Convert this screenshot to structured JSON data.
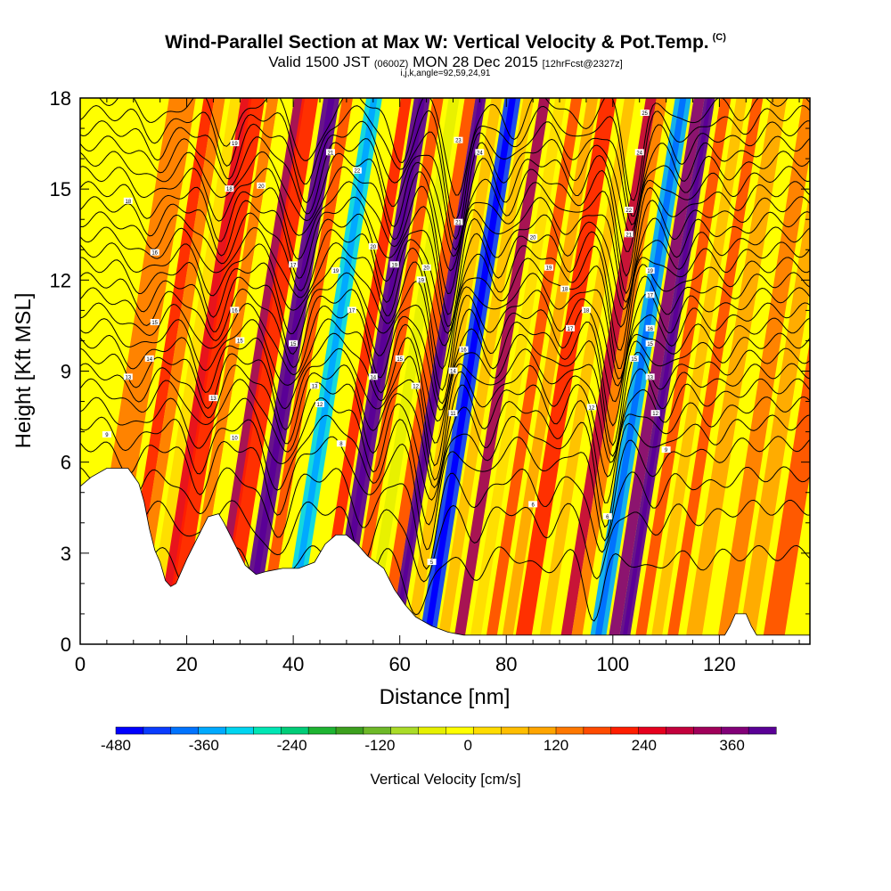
{
  "header": {
    "title": "Wind-Parallel Section at Max W: Vertical Velocity & Pot.Temp.",
    "copyright": "(C)",
    "subtitle_main": "Valid 1500 JST",
    "subtitle_utc": "(0600Z)",
    "subtitle_date": "MON 28 Dec 2015",
    "subtitle_fcst": "[12hrFcst@2327z]",
    "caption": "i,j,k,angle=92,59,24,91"
  },
  "chart_data": {
    "type": "heatmap",
    "xlabel": "Distance [nm]",
    "ylabel": "Height [Kft MSL]",
    "xlim": [
      0,
      137
    ],
    "ylim": [
      0,
      18
    ],
    "x_ticks": [
      0,
      20,
      40,
      60,
      80,
      100,
      120
    ],
    "y_ticks": [
      0,
      3,
      6,
      9,
      12,
      15,
      18
    ],
    "colorbar": {
      "label": "Vertical Velocity [cm/s]",
      "range": [
        -480,
        420
      ],
      "step": 30,
      "tick_labels": [
        "-480",
        "-360",
        "-240",
        "-120",
        "0",
        "120",
        "240",
        "360"
      ],
      "colors": [
        "#0000ff",
        "#0a3cff",
        "#0073ff",
        "#00aaff",
        "#00d5f0",
        "#00e6b4",
        "#00cd78",
        "#1eb432",
        "#3ca01e",
        "#6eb928",
        "#aadc28",
        "#e6f000",
        "#ffff00",
        "#ffdc00",
        "#ffbe00",
        "#ffa500",
        "#ff7800",
        "#ff4b00",
        "#ff1e00",
        "#e6001e",
        "#c3003c",
        "#a0005a",
        "#820078",
        "#5a0096"
      ]
    },
    "terrain_kft": [
      [
        0,
        5.2
      ],
      [
        2,
        5.5
      ],
      [
        5,
        5.8
      ],
      [
        9,
        5.8
      ],
      [
        11,
        5.3
      ],
      [
        12,
        4.7
      ],
      [
        13,
        3.8
      ],
      [
        14,
        3.1
      ],
      [
        15,
        2.7
      ],
      [
        16,
        2.1
      ],
      [
        17,
        1.9
      ],
      [
        18,
        2.0
      ],
      [
        20,
        2.8
      ],
      [
        22,
        3.5
      ],
      [
        24,
        4.2
      ],
      [
        26,
        4.3
      ],
      [
        27,
        4.0
      ],
      [
        29,
        3.3
      ],
      [
        31,
        2.6
      ],
      [
        33,
        2.3
      ],
      [
        35,
        2.4
      ],
      [
        38,
        2.5
      ],
      [
        41,
        2.5
      ],
      [
        44,
        2.7
      ],
      [
        46,
        3.3
      ],
      [
        48,
        3.6
      ],
      [
        50,
        3.6
      ],
      [
        52,
        3.3
      ],
      [
        54,
        2.9
      ],
      [
        57,
        2.5
      ],
      [
        59,
        1.8
      ],
      [
        61,
        1.3
      ],
      [
        63,
        0.9
      ],
      [
        66,
        0.6
      ],
      [
        69,
        0.4
      ],
      [
        72,
        0.3
      ],
      [
        110,
        0.3
      ],
      [
        121,
        0.3
      ],
      [
        122,
        0.6
      ],
      [
        123,
        1.0
      ],
      [
        125,
        1.0
      ],
      [
        126,
        0.6
      ],
      [
        127,
        0.3
      ],
      [
        137,
        0.3
      ]
    ],
    "w_cells": [
      {
        "x": 3,
        "width": 5,
        "w": 20
      },
      {
        "x": 8,
        "width": 2,
        "w": 60
      },
      {
        "x": 10,
        "width": 2,
        "w": 10
      },
      {
        "x": 13,
        "width": 2,
        "w": -90
      },
      {
        "x": 15,
        "width": 2,
        "w": 110
      },
      {
        "x": 17,
        "width": 3,
        "w": 80
      },
      {
        "x": 20,
        "width": 2,
        "w": 10
      },
      {
        "x": 22,
        "width": 2,
        "w": -110
      },
      {
        "x": 25,
        "width": 2,
        "w": 150
      },
      {
        "x": 27,
        "width": 3,
        "w": 60
      },
      {
        "x": 31,
        "width": 3,
        "w": 240
      },
      {
        "x": 34,
        "width": 2,
        "w": 40
      },
      {
        "x": 36,
        "width": 2,
        "w": -120
      },
      {
        "x": 39,
        "width": 3,
        "w": -360
      },
      {
        "x": 42,
        "width": 2,
        "w": -120
      },
      {
        "x": 45,
        "width": 2,
        "w": 60
      },
      {
        "x": 48,
        "width": 3,
        "w": 240
      },
      {
        "x": 51,
        "width": 2,
        "w": 40
      },
      {
        "x": 54,
        "width": 2,
        "w": -150
      },
      {
        "x": 57,
        "width": 2,
        "w": 30
      },
      {
        "x": 59,
        "width": 2,
        "w": 420
      },
      {
        "x": 62,
        "width": 2,
        "w": -60
      },
      {
        "x": 65,
        "width": 3,
        "w": -450
      },
      {
        "x": 68,
        "width": 2,
        "w": -60
      },
      {
        "x": 71,
        "width": 2,
        "w": 160
      },
      {
        "x": 74,
        "width": 2,
        "w": -90
      },
      {
        "x": 77,
        "width": 2,
        "w": 30
      },
      {
        "x": 80,
        "width": 2,
        "w": -30
      },
      {
        "x": 83,
        "width": 3,
        "w": 60
      },
      {
        "x": 87,
        "width": 2,
        "w": -60
      },
      {
        "x": 91,
        "width": 2,
        "w": 120
      },
      {
        "x": 93,
        "width": 2,
        "w": 0
      },
      {
        "x": 97,
        "width": 3,
        "w": -390
      },
      {
        "x": 100,
        "width": 2,
        "w": 180
      },
      {
        "x": 102,
        "width": 2,
        "w": 390
      },
      {
        "x": 105,
        "width": 2,
        "w": 30
      },
      {
        "x": 108,
        "width": 2,
        "w": -60
      },
      {
        "x": 111,
        "width": 2,
        "w": 30
      },
      {
        "x": 115,
        "width": 3,
        "w": -30
      },
      {
        "x": 121,
        "width": 3,
        "w": 20
      },
      {
        "x": 125,
        "width": 3,
        "w": -20
      },
      {
        "x": 130,
        "width": 4,
        "w": 30
      }
    ],
    "isentropes": {
      "base_heights_kft": [
        3.0,
        4.5,
        5.6,
        6.6,
        7.3,
        7.9,
        8.5,
        9.0,
        9.5,
        10.0,
        10.5,
        11.0,
        11.5,
        12.0,
        12.5,
        13.0,
        13.5,
        14.0,
        14.5,
        15.0,
        15.5,
        16.0,
        16.5,
        17.0,
        17.5,
        18.0
      ],
      "ridges": [
        {
          "x": 9,
          "amp": 0.8,
          "width": 3.5
        },
        {
          "x": 22,
          "amp": 1.5,
          "width": 3
        },
        {
          "x": 37,
          "amp": 2.2,
          "width": 3.5
        },
        {
          "x": 54,
          "amp": 2.0,
          "width": 3
        },
        {
          "x": 65,
          "amp": 3.4,
          "width": 2.8
        },
        {
          "x": 75,
          "amp": 1.2,
          "width": 3
        },
        {
          "x": 88,
          "amp": 1.0,
          "width": 3
        },
        {
          "x": 98,
          "amp": 3.2,
          "width": 2.5
        },
        {
          "x": 108,
          "amp": 1.0,
          "width": 3
        },
        {
          "x": 118,
          "amp": 0.5,
          "width": 4
        }
      ],
      "tilt_per_kft": -0.9
    },
    "contour_labels": [
      {
        "x": 5,
        "y": 6.9,
        "text": "9"
      },
      {
        "x": 9,
        "y": 8.8,
        "text": "13"
      },
      {
        "x": 13,
        "y": 9.4,
        "text": "14"
      },
      {
        "x": 14,
        "y": 10.6,
        "text": "15"
      },
      {
        "x": 14,
        "y": 12.9,
        "text": "16"
      },
      {
        "x": 9,
        "y": 14.6,
        "text": "18"
      },
      {
        "x": 25,
        "y": 8.1,
        "text": "13"
      },
      {
        "x": 29,
        "y": 6.8,
        "text": "10"
      },
      {
        "x": 30,
        "y": 10.0,
        "text": "15"
      },
      {
        "x": 29,
        "y": 11.0,
        "text": "16"
      },
      {
        "x": 28,
        "y": 15.0,
        "text": "18"
      },
      {
        "x": 29,
        "y": 16.5,
        "text": "19"
      },
      {
        "x": 34,
        "y": 15.1,
        "text": "20"
      },
      {
        "x": 40,
        "y": 9.9,
        "text": "15"
      },
      {
        "x": 40,
        "y": 12.5,
        "text": "17"
      },
      {
        "x": 44,
        "y": 8.5,
        "text": "13"
      },
      {
        "x": 45,
        "y": 7.9,
        "text": "12"
      },
      {
        "x": 48,
        "y": 12.3,
        "text": "19"
      },
      {
        "x": 47,
        "y": 16.2,
        "text": "21"
      },
      {
        "x": 51,
        "y": 11.0,
        "text": "17"
      },
      {
        "x": 52,
        "y": 15.6,
        "text": "22"
      },
      {
        "x": 55,
        "y": 8.8,
        "text": "14"
      },
      {
        "x": 55,
        "y": 13.1,
        "text": "20"
      },
      {
        "x": 59,
        "y": 12.5,
        "text": "19"
      },
      {
        "x": 60,
        "y": 9.4,
        "text": "15"
      },
      {
        "x": 63,
        "y": 8.5,
        "text": "12"
      },
      {
        "x": 64,
        "y": 12.0,
        "text": "19"
      },
      {
        "x": 65,
        "y": 12.4,
        "text": "20"
      },
      {
        "x": 70,
        "y": 7.6,
        "text": "11"
      },
      {
        "x": 70,
        "y": 9.0,
        "text": "14"
      },
      {
        "x": 72,
        "y": 9.7,
        "text": "16"
      },
      {
        "x": 71,
        "y": 13.9,
        "text": "21"
      },
      {
        "x": 71,
        "y": 16.6,
        "text": "23"
      },
      {
        "x": 75,
        "y": 16.2,
        "text": "24"
      },
      {
        "x": 85,
        "y": 4.6,
        "text": "6"
      },
      {
        "x": 85,
        "y": 13.4,
        "text": "20"
      },
      {
        "x": 88,
        "y": 12.4,
        "text": "19"
      },
      {
        "x": 91,
        "y": 11.7,
        "text": "18"
      },
      {
        "x": 92,
        "y": 10.4,
        "text": "17"
      },
      {
        "x": 95,
        "y": 11.0,
        "text": "18"
      },
      {
        "x": 96,
        "y": 7.8,
        "text": "12"
      },
      {
        "x": 99,
        "y": 4.2,
        "text": "6"
      },
      {
        "x": 103,
        "y": 13.5,
        "text": "21"
      },
      {
        "x": 103,
        "y": 14.3,
        "text": "22"
      },
      {
        "x": 104,
        "y": 9.4,
        "text": "15"
      },
      {
        "x": 105,
        "y": 16.2,
        "text": "24"
      },
      {
        "x": 106,
        "y": 17.5,
        "text": "25"
      },
      {
        "x": 107,
        "y": 8.8,
        "text": "13"
      },
      {
        "x": 107,
        "y": 9.9,
        "text": "15"
      },
      {
        "x": 107,
        "y": 10.4,
        "text": "16"
      },
      {
        "x": 107,
        "y": 11.5,
        "text": "17"
      },
      {
        "x": 107,
        "y": 12.3,
        "text": "19"
      },
      {
        "x": 108,
        "y": 7.6,
        "text": "12"
      },
      {
        "x": 110,
        "y": 6.4,
        "text": "9"
      },
      {
        "x": 49,
        "y": 6.6,
        "text": "8"
      },
      {
        "x": 66,
        "y": 2.7,
        "text": "5"
      }
    ]
  }
}
